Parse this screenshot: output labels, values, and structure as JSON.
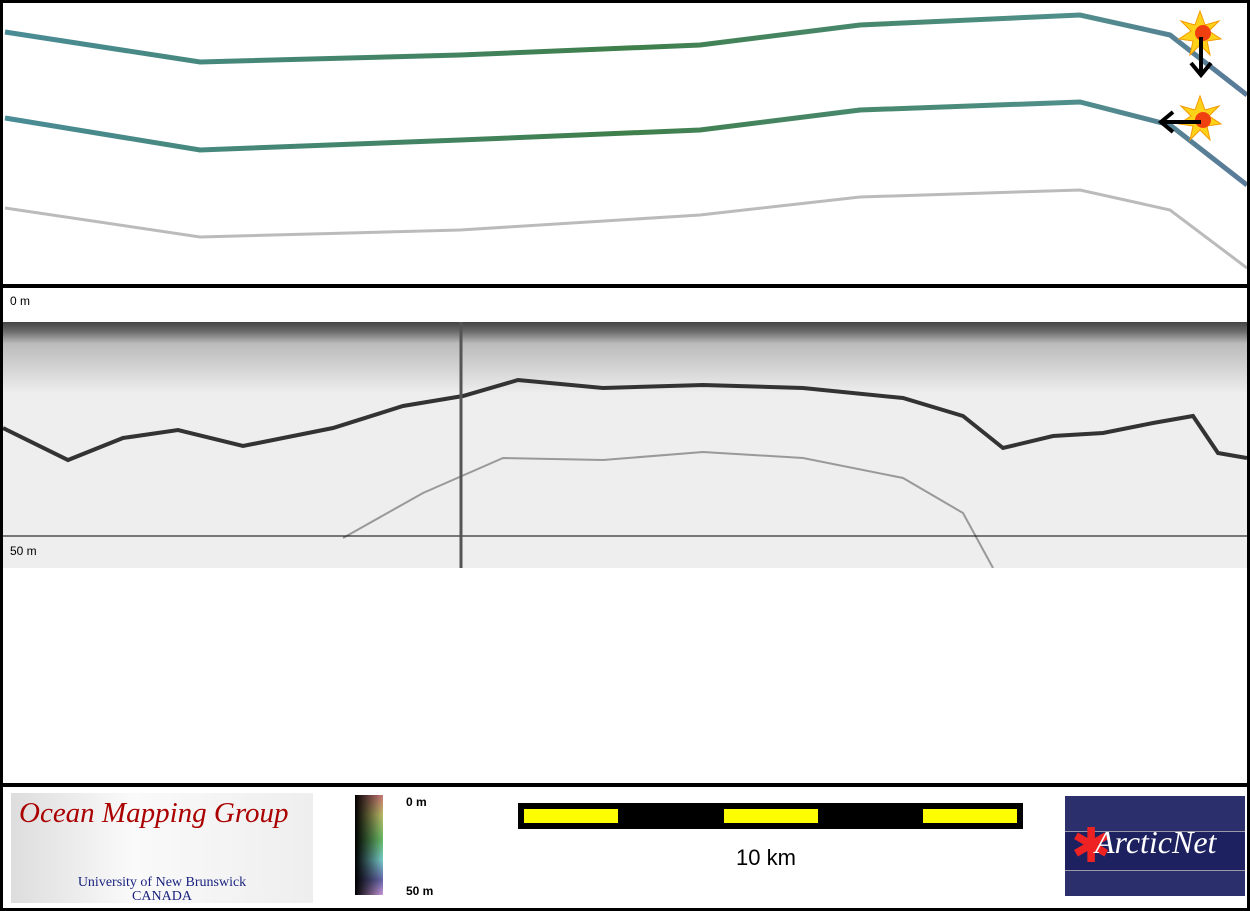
{
  "profile": {
    "depth_top": "0 m",
    "depth_bottom": "50 m"
  },
  "legend": {
    "colorbar_top": "0 m",
    "colorbar_bottom": "50 m",
    "scale_label": "10 km"
  },
  "logos": {
    "omg_title": "Ocean Mapping Group",
    "omg_univ": "University of New Brunswick",
    "omg_country": "CANADA",
    "arcticnet": "ArcticNet"
  },
  "icons": {
    "marker1": "sun-arrow-down-icon",
    "marker2": "sun-arrow-left-icon"
  },
  "colors": {
    "track": "#4a8a8a",
    "scale_fill": "#ffff00",
    "arctic_bg": "#2b2f6b",
    "omg_red": "#aa0000"
  }
}
